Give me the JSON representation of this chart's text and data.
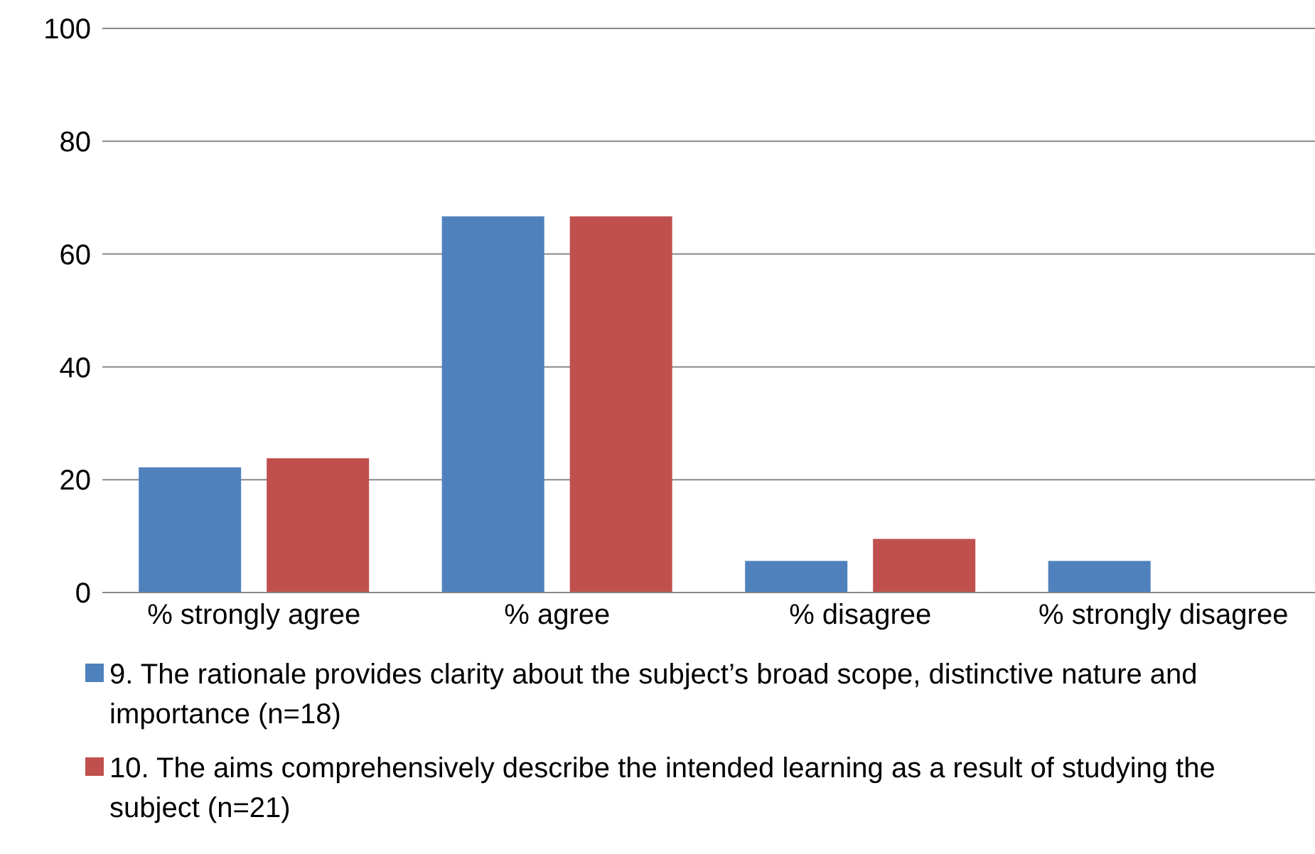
{
  "chart_data": {
    "type": "bar",
    "categories": [
      "% strongly agree",
      "% agree",
      "% disagree",
      "% strongly disagree"
    ],
    "series": [
      {
        "name": "9. The rationale provides clarity about the subject’s broad scope, distinctive nature and importance (n=18)",
        "color": "#4f81bd",
        "values": [
          22.2,
          66.7,
          5.6,
          5.6
        ]
      },
      {
        "name": "10. The aims comprehensively describe the intended learning as a result of studying the subject (n=21)",
        "color": "#c0504d",
        "values": [
          23.8,
          66.7,
          9.5,
          0
        ]
      }
    ],
    "ylim": [
      0,
      100
    ],
    "yticks": [
      0,
      20,
      40,
      60,
      80,
      100
    ],
    "grid": "y",
    "legend": "bottom"
  }
}
